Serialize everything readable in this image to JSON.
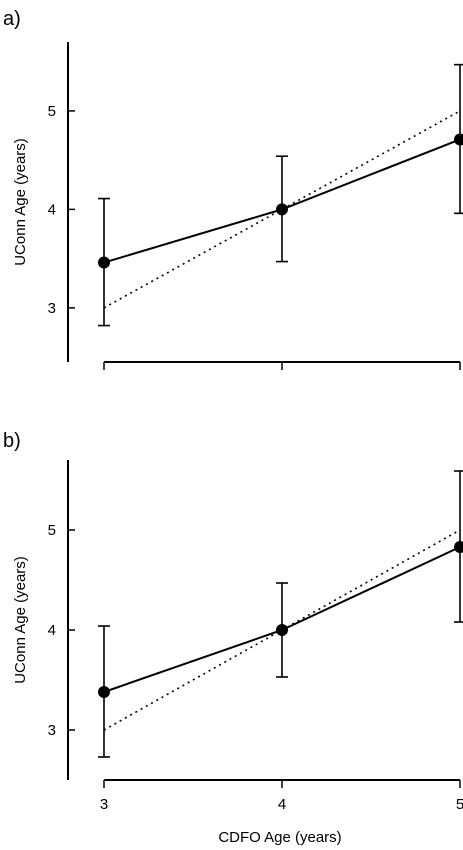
{
  "chart_data": [
    {
      "type": "line",
      "panel_label": "a)",
      "x": [
        3,
        4,
        5
      ],
      "xlabel": "",
      "ylabel": "UConn Age (years)",
      "ylim": [
        2.45,
        5.7
      ],
      "xlim": [
        3,
        5
      ],
      "yticks": [
        3,
        4,
        5
      ],
      "xticks": [
        3,
        4,
        5
      ],
      "x_tick_labels_shown": false,
      "grid": false,
      "series": [
        {
          "style": "solid-with-markers",
          "values": [
            3.46,
            4.0,
            4.71
          ],
          "error_low": [
            2.82,
            3.47,
            3.96
          ],
          "error_high": [
            4.11,
            4.54,
            5.47
          ]
        },
        {
          "style": "dotted",
          "values": [
            3.0,
            4.0,
            5.0
          ]
        }
      ]
    },
    {
      "type": "line",
      "panel_label": "b)",
      "x": [
        3,
        4,
        5
      ],
      "xlabel": "CDFO Age (years)",
      "ylabel": "UConn Age (years)",
      "ylim": [
        2.5,
        5.7
      ],
      "xlim": [
        3,
        5
      ],
      "yticks": [
        3,
        4,
        5
      ],
      "xticks": [
        3,
        4,
        5
      ],
      "x_tick_labels_shown": true,
      "grid": false,
      "series": [
        {
          "style": "solid-with-markers",
          "values": [
            3.38,
            4.0,
            4.83
          ],
          "error_low": [
            2.73,
            3.53,
            4.08
          ],
          "error_high": [
            4.04,
            4.47,
            5.59
          ]
        },
        {
          "style": "dotted",
          "values": [
            3.0,
            4.0,
            5.0
          ]
        }
      ]
    }
  ]
}
